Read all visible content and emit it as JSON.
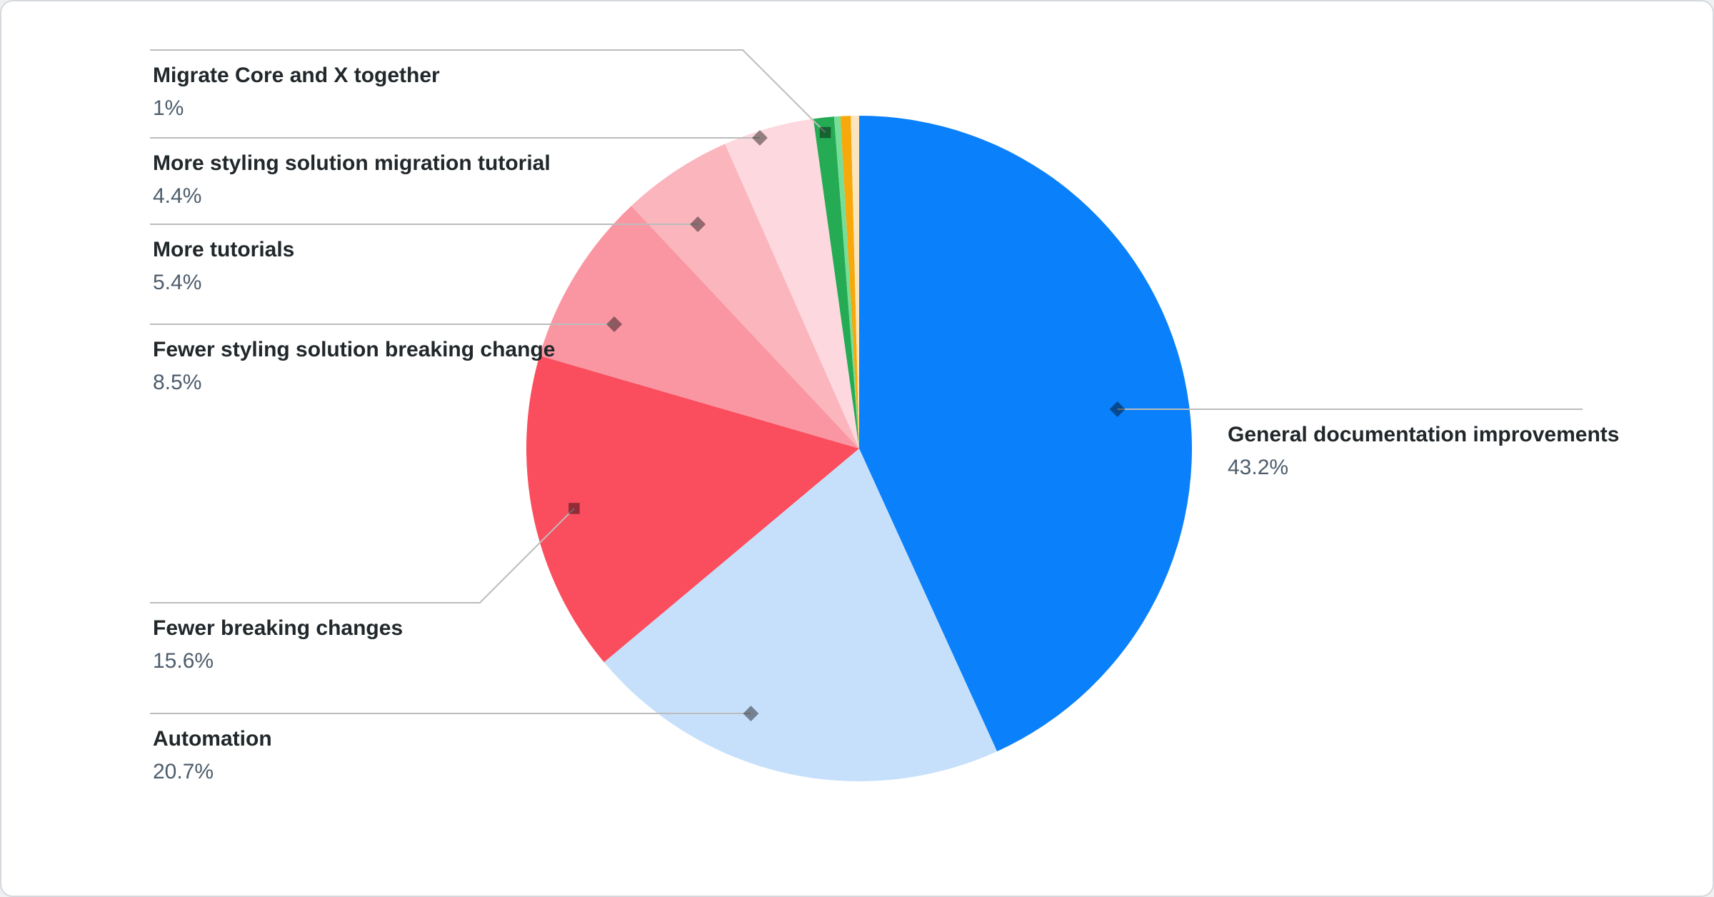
{
  "chart_data": {
    "type": "pie",
    "title": "",
    "legend": "none",
    "direction": "clockwise",
    "start_angle_deg": 0,
    "slices": [
      {
        "label": "General documentation improvements",
        "value": 43.2,
        "display": "43.2%",
        "color": "#0a80fa"
      },
      {
        "label": "Automation",
        "value": 20.7,
        "display": "20.7%",
        "color": "#c6e0fb"
      },
      {
        "label": "Fewer breaking changes",
        "value": 15.6,
        "display": "15.6%",
        "color": "#fa4d5e"
      },
      {
        "label": "Fewer styling solution breaking change",
        "value": 8.5,
        "display": "8.5%",
        "color": "#fa96a2"
      },
      {
        "label": "More tutorials",
        "value": 5.4,
        "display": "5.4%",
        "color": "#fbb5bd"
      },
      {
        "label": "More styling solution migration tutorial",
        "value": 4.4,
        "display": "4.4%",
        "color": "#fdd8de"
      },
      {
        "label": "Migrate Core and X together",
        "value": 1,
        "display": "1%",
        "color": "#24ab53"
      },
      {
        "label": "",
        "value": 0.3,
        "display": "",
        "color": "#77de98"
      },
      {
        "label": "",
        "value": 0.5,
        "display": "",
        "color": "#f7a90b"
      },
      {
        "label": "",
        "value": 0.4,
        "display": "",
        "color": "#fbe5bf"
      }
    ],
    "callout_line_color": "#bcbcbc",
    "marker_color": "rgba(0,0,0,0.42)",
    "label_color": "#21272a",
    "percent_color": "#4d5d6c"
  }
}
